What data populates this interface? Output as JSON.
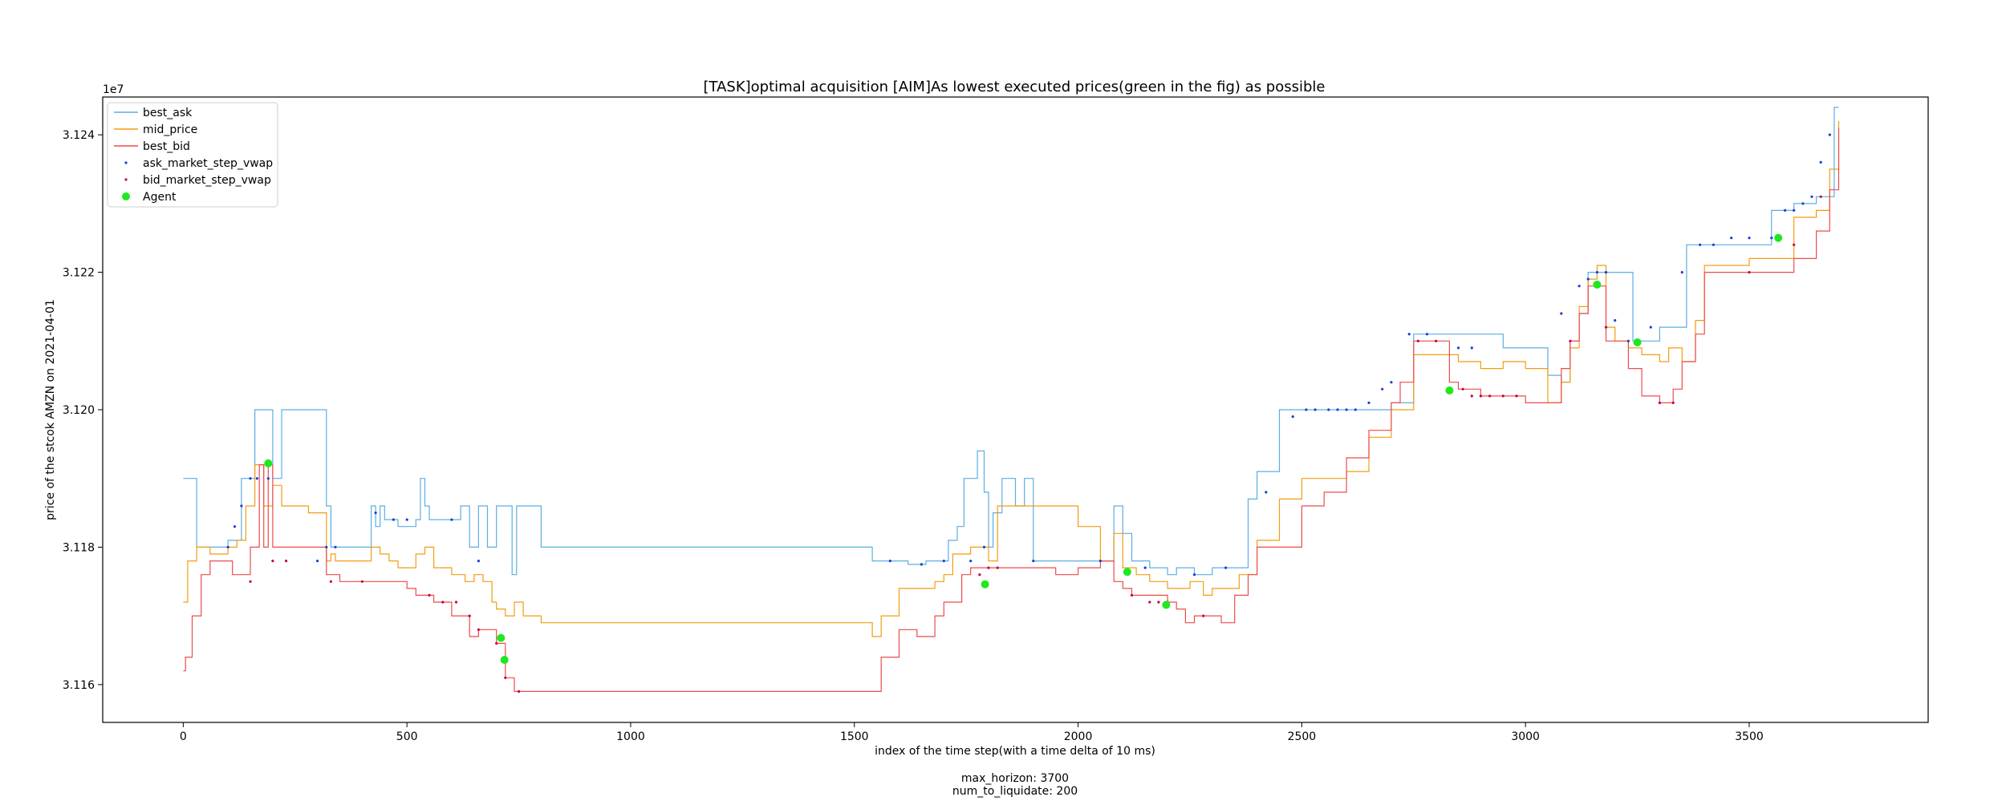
{
  "chart_data": {
    "type": "line",
    "title": "[TASK]optimal acquisition  [AIM]As lowest executed prices(green in the fig) as possible",
    "xlabel": "index of the time step(with a time delta of 10 ms)",
    "ylabel": "price of the stcok AMZN on 2021-04-01",
    "y_offset_label": "1e7",
    "footer_lines": [
      "max_horizon: 3700",
      "num_to_liquidate: 200"
    ],
    "xlim": [
      -180,
      3900
    ],
    "ylim": [
      31154500,
      31245500
    ],
    "x_ticks": [
      0,
      500,
      1000,
      1500,
      2000,
      2500,
      3000,
      3500
    ],
    "y_ticks": [
      {
        "value": 31160000,
        "label": "3.116"
      },
      {
        "value": 31180000,
        "label": "3.118"
      },
      {
        "value": 31200000,
        "label": "3.120"
      },
      {
        "value": 31220000,
        "label": "3.122"
      },
      {
        "value": 31240000,
        "label": "3.124"
      }
    ],
    "grid": false,
    "legend_position": "top-left",
    "series": [
      {
        "name": "best_ask",
        "kind": "step-line",
        "color": "#5dade2",
        "x": [
          0,
          30,
          80,
          100,
          130,
          140,
          160,
          170,
          180,
          200,
          220,
          250,
          280,
          300,
          320,
          330,
          340,
          350,
          420,
          430,
          440,
          450,
          470,
          480,
          520,
          530,
          540,
          550,
          560,
          600,
          620,
          640,
          660,
          680,
          700,
          720,
          735,
          745,
          760,
          770,
          800,
          1000,
          1200,
          1400,
          1540,
          1560,
          1620,
          1660,
          1700,
          1710,
          1720,
          1730,
          1745,
          1760,
          1775,
          1790,
          1800,
          1810,
          1830,
          1860,
          1880,
          1900,
          1930,
          1960,
          2000,
          2040,
          2070,
          2080,
          2100,
          2120,
          2140,
          2160,
          2200,
          2220,
          2260,
          2300,
          2350,
          2380,
          2400,
          2420,
          2450,
          2500,
          2600,
          2700,
          2750,
          2800,
          2850,
          2900,
          2950,
          3000,
          3050,
          3080,
          3100,
          3120,
          3140,
          3160,
          3180,
          3200,
          3240,
          3280,
          3300,
          3330,
          3350,
          3360,
          3380,
          3400,
          3450,
          3500,
          3550,
          3600,
          3650,
          3690,
          3700
        ],
        "y": [
          31190000,
          31180000,
          31180000,
          31181000,
          31190000,
          31190000,
          31200000,
          31200000,
          31200000,
          31190000,
          31200000,
          31200000,
          31200000,
          31200000,
          31186000,
          31180000,
          31180000,
          31180000,
          31186000,
          31183000,
          31186000,
          31184000,
          31184000,
          31183000,
          31184000,
          31190000,
          31186000,
          31184000,
          31184000,
          31184000,
          31186000,
          31180000,
          31186000,
          31180000,
          31186000,
          31186000,
          31176000,
          31186000,
          31186000,
          31186000,
          31180000,
          31180000,
          31180000,
          31180000,
          31178000,
          31178000,
          31177500,
          31178000,
          31178000,
          31181000,
          31181000,
          31183000,
          31190000,
          31190000,
          31194000,
          31188000,
          31180000,
          31185000,
          31190000,
          31186000,
          31190000,
          31178000,
          31178000,
          31178000,
          31178000,
          31178000,
          31178000,
          31186000,
          31182000,
          31178000,
          31178000,
          31177000,
          31176000,
          31177000,
          31176000,
          31177000,
          31177000,
          31187000,
          31191000,
          31191000,
          31200000,
          31200000,
          31200000,
          31201000,
          31211000,
          31211000,
          31211000,
          31211000,
          31209000,
          31209000,
          31205000,
          31204000,
          31210000,
          31214000,
          31220000,
          31220000,
          31220000,
          31220000,
          31210000,
          31210000,
          31212000,
          31212000,
          31212000,
          31224000,
          31224000,
          31224000,
          31224000,
          31224000,
          31229000,
          31230000,
          31231000,
          31244000,
          31244000
        ]
      },
      {
        "name": "mid_price",
        "kind": "step-line",
        "color": "#f39c12",
        "x": [
          0,
          10,
          20,
          30,
          60,
          80,
          100,
          120,
          140,
          160,
          170,
          180,
          200,
          220,
          240,
          260,
          280,
          320,
          330,
          340,
          400,
          420,
          440,
          460,
          480,
          500,
          520,
          540,
          560,
          600,
          630,
          650,
          670,
          690,
          700,
          720,
          740,
          760,
          800,
          1000,
          1200,
          1400,
          1540,
          1560,
          1600,
          1640,
          1680,
          1700,
          1720,
          1760,
          1800,
          1820,
          1850,
          1900,
          1950,
          2000,
          2050,
          2080,
          2100,
          2130,
          2160,
          2200,
          2250,
          2280,
          2300,
          2330,
          2360,
          2400,
          2450,
          2500,
          2550,
          2600,
          2650,
          2700,
          2750,
          2800,
          2850,
          2900,
          2950,
          3000,
          3050,
          3080,
          3100,
          3120,
          3140,
          3160,
          3180,
          3200,
          3230,
          3260,
          3300,
          3320,
          3350,
          3380,
          3400,
          3450,
          3500,
          3550,
          3600,
          3650,
          3680,
          3700
        ],
        "y": [
          31172000,
          31178000,
          31178000,
          31180000,
          31179000,
          31179000,
          31180000,
          31181000,
          31186000,
          31192000,
          31192000,
          31186000,
          31189000,
          31186000,
          31186000,
          31186000,
          31185000,
          31178000,
          31179000,
          31178000,
          31178000,
          31180000,
          31179000,
          31178000,
          31177000,
          31177000,
          31179000,
          31180000,
          31177000,
          31176000,
          31175000,
          31176000,
          31175000,
          31172000,
          31171000,
          31170000,
          31172000,
          31170000,
          31169000,
          31169000,
          31169000,
          31169000,
          31167000,
          31170000,
          31174000,
          31174000,
          31175000,
          31176000,
          31179000,
          31180000,
          31178000,
          31186000,
          31186000,
          31186000,
          31186000,
          31183000,
          31178000,
          31182000,
          31177000,
          31176000,
          31175000,
          31174000,
          31175000,
          31173000,
          31174000,
          31174000,
          31176000,
          31181000,
          31187000,
          31190000,
          31190000,
          31191000,
          31196000,
          31200000,
          31208000,
          31208000,
          31207000,
          31206000,
          31207000,
          31206000,
          31201000,
          31204000,
          31209000,
          31215000,
          31219000,
          31221000,
          31212000,
          31210000,
          31209000,
          31208000,
          31207000,
          31209000,
          31207000,
          31213000,
          31221000,
          31221000,
          31222000,
          31222000,
          31228000,
          31229000,
          31235000,
          31242000
        ]
      },
      {
        "name": "best_bid",
        "kind": "step-line",
        "color": "#ec4c4c",
        "x": [
          0,
          5,
          10,
          20,
          30,
          40,
          60,
          90,
          110,
          130,
          150,
          170,
          180,
          190,
          200,
          220,
          250,
          300,
          320,
          340,
          350,
          400,
          450,
          500,
          520,
          540,
          560,
          600,
          640,
          660,
          700,
          720,
          740,
          760,
          780,
          800,
          1000,
          1200,
          1400,
          1540,
          1560,
          1600,
          1640,
          1680,
          1700,
          1740,
          1760,
          1800,
          1850,
          1900,
          1950,
          2000,
          2050,
          2080,
          2100,
          2120,
          2150,
          2200,
          2220,
          2240,
          2260,
          2300,
          2320,
          2350,
          2380,
          2400,
          2450,
          2500,
          2550,
          2600,
          2650,
          2700,
          2720,
          2750,
          2800,
          2830,
          2850,
          2900,
          2950,
          3000,
          3050,
          3080,
          3100,
          3120,
          3140,
          3160,
          3180,
          3200,
          3230,
          3260,
          3300,
          3330,
          3350,
          3380,
          3400,
          3500,
          3550,
          3600,
          3650,
          3680,
          3700
        ],
        "y": [
          31162000,
          31164000,
          31164000,
          31170000,
          31170000,
          31176000,
          31178000,
          31178000,
          31176000,
          31176000,
          31180000,
          31192000,
          31180000,
          31192000,
          31180000,
          31180000,
          31180000,
          31180000,
          31176000,
          31176000,
          31175000,
          31175000,
          31175000,
          31174000,
          31173000,
          31173000,
          31172000,
          31170000,
          31167000,
          31168000,
          31166000,
          31161000,
          31159000,
          31159000,
          31159000,
          31159000,
          31159000,
          31159000,
          31159000,
          31159000,
          31164000,
          31168000,
          31167000,
          31170000,
          31172000,
          31176000,
          31177000,
          31177000,
          31177000,
          31177000,
          31176000,
          31177000,
          31178000,
          31175000,
          31174000,
          31173000,
          31173000,
          31172000,
          31171000,
          31169000,
          31170000,
          31170000,
          31169000,
          31173000,
          31176000,
          31180000,
          31180000,
          31186000,
          31188000,
          31193000,
          31197000,
          31201000,
          31204000,
          31210000,
          31210000,
          31204000,
          31203000,
          31202000,
          31202000,
          31201000,
          31201000,
          31206000,
          31210000,
          31214000,
          31218000,
          31218000,
          31210000,
          31210000,
          31206000,
          31202000,
          31201000,
          31203000,
          31207000,
          31211000,
          31220000,
          31220000,
          31220000,
          31222000,
          31226000,
          31232000,
          31241000
        ]
      },
      {
        "name": "ask_market_step_vwap",
        "kind": "markers",
        "color": "#1a3fd6",
        "x": [
          100,
          115,
          130,
          150,
          165,
          190,
          300,
          320,
          340,
          430,
          470,
          500,
          600,
          660,
          1580,
          1650,
          1700,
          1760,
          1790,
          1900,
          2050,
          2150,
          2260,
          2330,
          2420,
          2480,
          2510,
          2530,
          2560,
          2580,
          2600,
          2620,
          2650,
          2680,
          2700,
          2740,
          2780,
          2850,
          2880,
          3080,
          3120,
          3140,
          3160,
          3180,
          3200,
          3230,
          3280,
          3350,
          3390,
          3420,
          3460,
          3500,
          3550,
          3580,
          3600,
          3620,
          3640,
          3660,
          3680
        ],
        "y": [
          31180000,
          31183000,
          31186000,
          31190000,
          31190000,
          31190000,
          31178000,
          31180000,
          31180000,
          31185000,
          31184000,
          31184000,
          31184000,
          31178000,
          31178000,
          31177500,
          31178000,
          31178000,
          31180000,
          31178000,
          31178000,
          31177000,
          31176000,
          31177000,
          31188000,
          31199000,
          31200000,
          31200000,
          31200000,
          31200000,
          31200000,
          31200000,
          31201000,
          31203000,
          31204000,
          31211000,
          31211000,
          31209000,
          31209000,
          31214000,
          31218000,
          31219000,
          31220000,
          31220000,
          31213000,
          31210000,
          31212000,
          31220000,
          31224000,
          31224000,
          31225000,
          31225000,
          31225000,
          31229000,
          31229000,
          31230000,
          31231000,
          31236000,
          31240000
        ]
      },
      {
        "name": "bid_market_step_vwap",
        "kind": "markers",
        "color": "#c40040",
        "x": [
          150,
          200,
          230,
          330,
          400,
          550,
          580,
          610,
          640,
          660,
          700,
          720,
          750,
          1780,
          1800,
          1820,
          2120,
          2160,
          2180,
          2200,
          2280,
          2760,
          2800,
          2860,
          2880,
          2900,
          2920,
          2950,
          2980,
          3100,
          3180,
          3300,
          3330,
          3500,
          3600,
          3660
        ],
        "y": [
          31175000,
          31178000,
          31178000,
          31175000,
          31175000,
          31173000,
          31172000,
          31172000,
          31170000,
          31168000,
          31166000,
          31161000,
          31159000,
          31176000,
          31177000,
          31177000,
          31173000,
          31172000,
          31172000,
          31172000,
          31170000,
          31210000,
          31210000,
          31203000,
          31202000,
          31202000,
          31202000,
          31202000,
          31202000,
          31210000,
          31212000,
          31201000,
          31201000,
          31220000,
          31224000,
          31231000
        ]
      },
      {
        "name": "Agent",
        "kind": "markers",
        "color": "#1ee81e",
        "x": [
          190,
          710,
          718,
          1792,
          2110,
          2197,
          2830,
          3160,
          3250,
          3565
        ],
        "y": [
          31192200,
          31166800,
          31163600,
          31174600,
          31176400,
          31171600,
          31202800,
          31218200,
          31209800,
          31225000
        ]
      }
    ]
  }
}
